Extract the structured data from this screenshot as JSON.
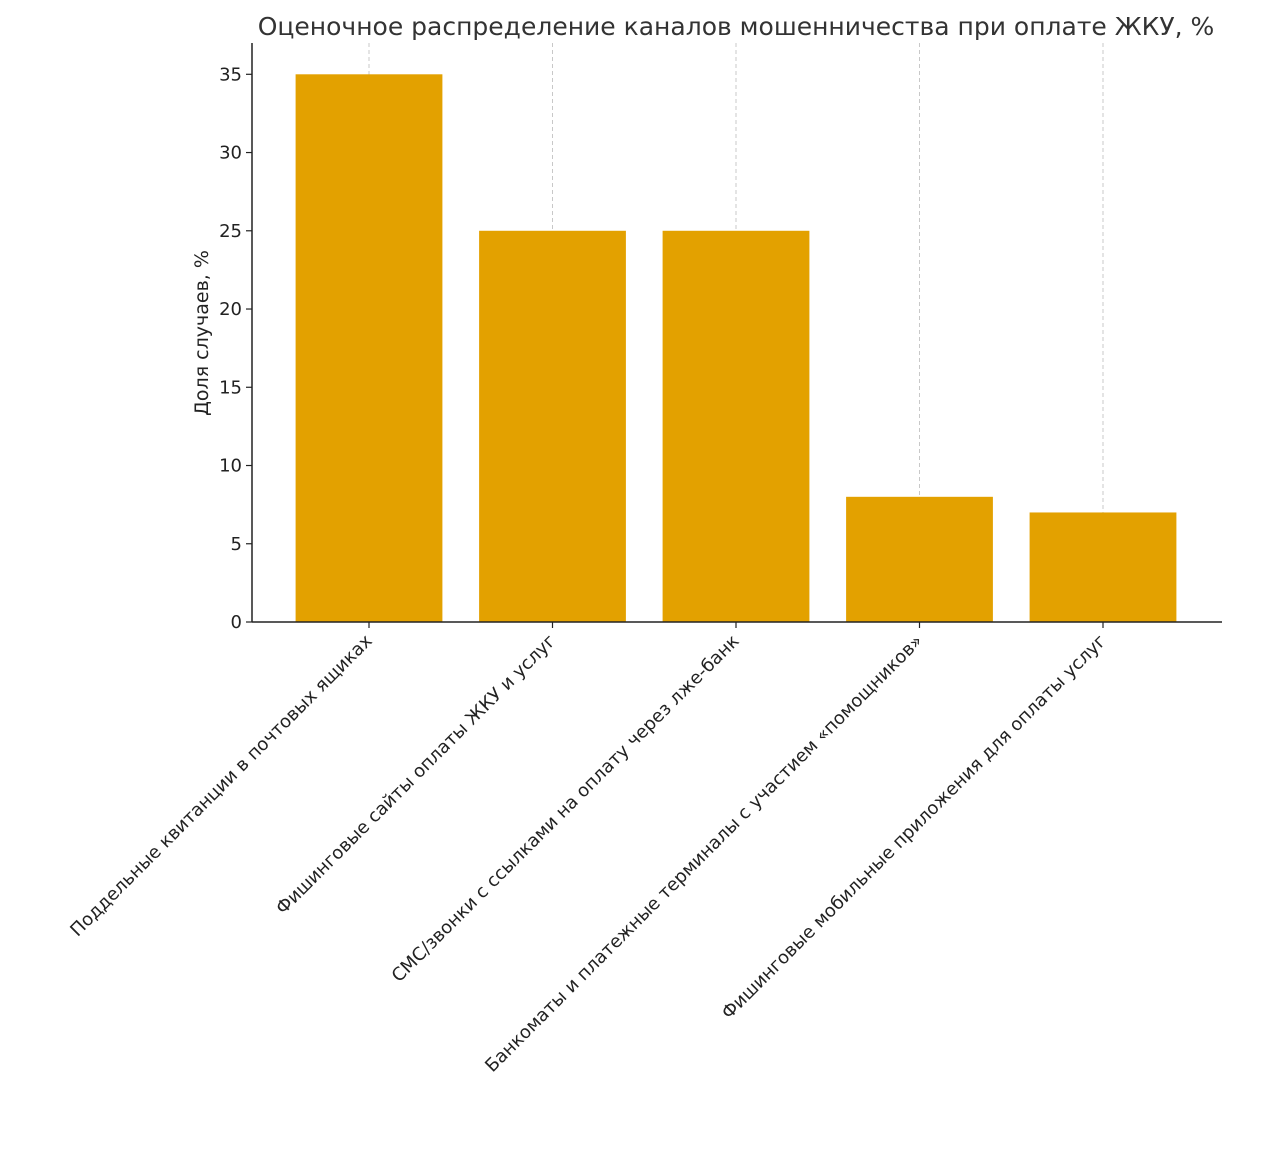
{
  "chart_data": {
    "type": "bar",
    "title": "Оценочное распределение каналов мошенничества при оплате ЖКУ, %",
    "xlabel": "",
    "ylabel": "Доля случаев, %",
    "categories": [
      "Поддельные квитанции в почтовых ящиках",
      "Фишинговые сайты оплаты ЖКУ и услуг",
      "СМС/звонки с ссылками на оплату через лже-банк",
      "Банкоматы и платежные терминалы с участием «помощников»",
      "Фишинговые мобильные приложения для оплаты услуг"
    ],
    "values": [
      35,
      25,
      25,
      8,
      7
    ],
    "ylim": [
      0,
      37
    ],
    "yticks": [
      0,
      5,
      10,
      15,
      20,
      25,
      30,
      35
    ],
    "grid": "vertical dashed",
    "bar_color": "#e3a100"
  }
}
